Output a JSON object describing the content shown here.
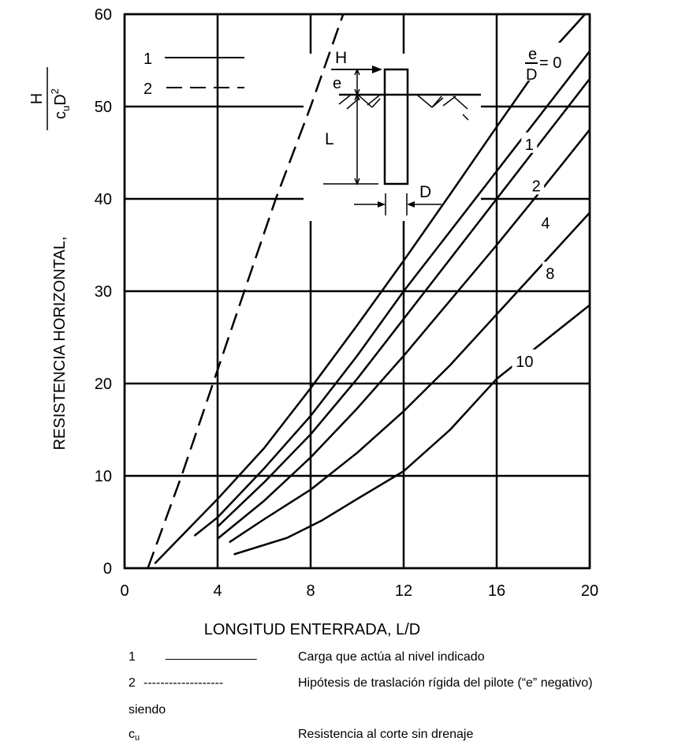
{
  "chart_data": {
    "type": "line",
    "xlabel": "LONGITUD ENTERRADA, L/D",
    "ylabel": "RESISTENCIA HORIZONTAL,",
    "ylabel_fraction": {
      "numerator": "H",
      "denominator_c": "c",
      "denominator_sub": "u",
      "denominator_D": "D",
      "denominator_sup": "2"
    },
    "xlim": [
      0,
      20
    ],
    "ylim": [
      0,
      60
    ],
    "x_ticks": [
      "0",
      "4",
      "8",
      "12",
      "16",
      "20"
    ],
    "y_ticks": [
      "0",
      "10",
      "20",
      "30",
      "40",
      "50",
      "60"
    ],
    "grid": true,
    "legend_in_chart": [
      {
        "label": "1",
        "style": "solid"
      },
      {
        "label": "2",
        "style": "dashed"
      }
    ],
    "curve_label_prefix": {
      "numerator": "e",
      "denominator": "D",
      "suffix": "= 0"
    },
    "series": [
      {
        "name": "2",
        "style": "dashed",
        "points": [
          [
            1.0,
            0
          ],
          [
            2.45,
            10
          ],
          [
            3.8,
            20
          ],
          [
            5.15,
            30
          ],
          [
            6.5,
            40
          ],
          [
            8.0,
            50
          ],
          [
            9.4,
            60
          ]
        ]
      },
      {
        "name": "0",
        "style": "solid",
        "label_at": [
          18.6,
          53.5
        ],
        "points": [
          [
            1.3,
            0.5
          ],
          [
            4,
            7.5
          ],
          [
            6,
            13
          ],
          [
            8,
            19.5
          ],
          [
            10,
            26.3
          ],
          [
            12,
            33.3
          ],
          [
            14,
            40.5
          ],
          [
            16,
            47.8
          ],
          [
            18,
            55
          ],
          [
            19.8,
            60
          ]
        ]
      },
      {
        "name": "1",
        "style": "solid",
        "label_at": [
          17.4,
          46
        ],
        "points": [
          [
            3.0,
            3.5
          ],
          [
            4,
            5.5
          ],
          [
            6,
            10.8
          ],
          [
            8,
            16.5
          ],
          [
            10,
            23
          ],
          [
            12,
            30
          ],
          [
            14,
            36.5
          ],
          [
            16,
            43
          ],
          [
            18,
            49.5
          ],
          [
            20,
            56
          ]
        ]
      },
      {
        "name": "2",
        "style": "solid",
        "label_at": [
          17.7,
          41.5
        ],
        "points": [
          [
            4.0,
            4.5
          ],
          [
            6,
            9.3
          ],
          [
            8,
            14.5
          ],
          [
            10,
            20.5
          ],
          [
            12,
            27
          ],
          [
            14,
            33.5
          ],
          [
            16,
            40
          ],
          [
            18,
            46.5
          ],
          [
            20,
            53
          ]
        ]
      },
      {
        "name": "4",
        "style": "solid",
        "label_at": [
          18.1,
          37.5
        ],
        "points": [
          [
            4.0,
            3.2
          ],
          [
            6,
            7.3
          ],
          [
            8,
            12
          ],
          [
            10,
            17.3
          ],
          [
            12,
            23
          ],
          [
            14,
            29
          ],
          [
            16,
            35
          ],
          [
            18,
            41.2
          ],
          [
            20,
            47.5
          ]
        ]
      },
      {
        "name": "8",
        "style": "solid",
        "label_at": [
          18.3,
          32
        ],
        "points": [
          [
            4.5,
            2.8
          ],
          [
            6,
            5.3
          ],
          [
            8,
            8.5
          ],
          [
            10,
            12.5
          ],
          [
            12,
            17
          ],
          [
            14,
            22
          ],
          [
            16,
            27.5
          ],
          [
            18,
            33
          ],
          [
            20,
            38.5
          ]
        ]
      },
      {
        "name": "10",
        "style": "solid",
        "label_at": [
          17.2,
          22.5
        ],
        "points": [
          [
            4.7,
            1.5
          ],
          [
            7,
            3.3
          ],
          [
            8.5,
            5.2
          ],
          [
            10,
            7.5
          ],
          [
            12,
            10.5
          ],
          [
            14,
            15
          ],
          [
            16,
            20.5
          ],
          [
            18,
            24.5
          ],
          [
            20,
            28.5
          ]
        ]
      }
    ],
    "inset": {
      "force": "H",
      "eccentricity": "e",
      "length": "L",
      "diameter": "D"
    }
  },
  "footer": {
    "rows": [
      {
        "key": "1",
        "line": "_____________",
        "text": "Carga que actúa al nivel indicado"
      },
      {
        "key": "2",
        "line": "-------------------",
        "text": "Hipótesis de traslación rígida del pilote (“e” negativo)"
      }
    ],
    "siendo": "siendo",
    "cu_symbol": "c",
    "cu_sub": "u",
    "cu_text": "Resistencia al corte sin drenaje"
  }
}
